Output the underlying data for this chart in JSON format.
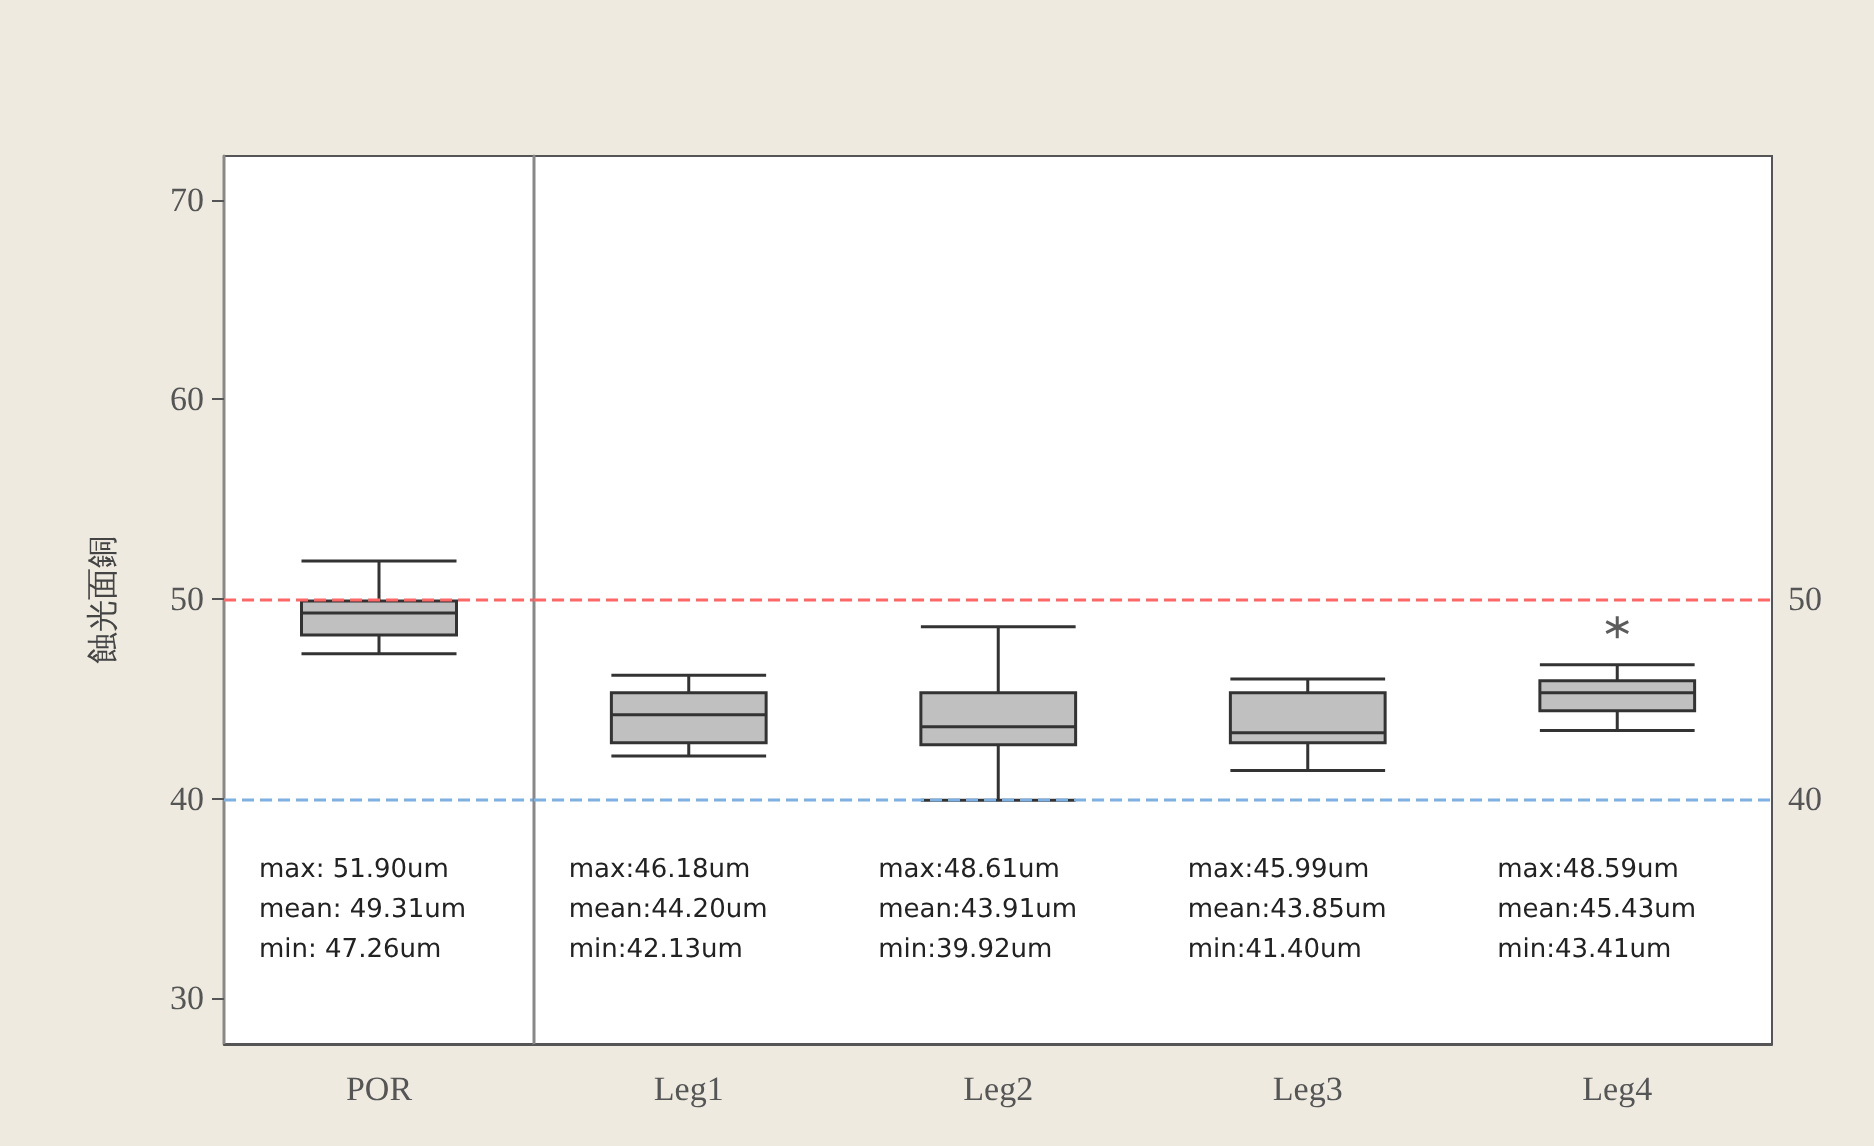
{
  "chart_data": [
    {
      "type": "box",
      "ylabel": "蝕光面銅",
      "categories": [
        "POR"
      ],
      "series": [
        {
          "color": "#c0c0c0",
          "boxes": [
            {
              "low": 47.26,
              "q1": 48.2,
              "median": 49.3,
              "q3": 49.9,
              "high": 51.9
            }
          ]
        }
      ],
      "ylim": [
        27.7,
        72.2
      ],
      "yticks": [
        30,
        40,
        50,
        60,
        70
      ],
      "grid": false,
      "ref_lines": [
        {
          "axis": "y",
          "value": 50,
          "color": "#ff6666",
          "line_style": "dashed"
        },
        {
          "axis": "y",
          "value": 40,
          "color": "#7eb0e2",
          "line_style": "dashed"
        }
      ],
      "annotations": [
        "max: 51.90um\nmean: 49.31um\nmin: 47.26um"
      ]
    },
    {
      "type": "box",
      "categories": [
        "Leg1",
        "Leg2",
        "Leg3",
        "Leg4"
      ],
      "series": [
        {
          "color": "#c0c0c0",
          "boxes": [
            {
              "low": 42.13,
              "q1": 42.8,
              "median": 44.2,
              "q3": 45.3,
              "high": 46.18
            },
            {
              "low": 39.92,
              "q1": 42.7,
              "median": 43.6,
              "q3": 45.3,
              "high": 48.61
            },
            {
              "low": 41.4,
              "q1": 42.8,
              "median": 43.3,
              "q3": 45.3,
              "high": 45.99
            },
            {
              "low": 43.41,
              "q1": 44.4,
              "median": 45.3,
              "q3": 45.9,
              "high": 46.7,
              "outliers": [
                48.59
              ]
            }
          ]
        }
      ],
      "ylim": [
        27.7,
        72.2
      ],
      "grid": false,
      "tick_labels": "x",
      "ref_lines": [
        {
          "axis": "y",
          "value": 50,
          "label": "50",
          "color": "#ff6666",
          "line_style": "dashed"
        },
        {
          "axis": "y",
          "value": 40,
          "label": "40",
          "color": "#7eb0e2",
          "line_style": "dashed"
        }
      ],
      "annotations": [
        "max:46.18um\nmean:44.20um\nmin:42.13um",
        "max:48.61um\nmean:43.91um\nmin:39.92um",
        "max:45.99um\nmean:43.85um\nmin:41.40um",
        "max:48.59um\nmean:45.43um\nmin:43.41um"
      ]
    }
  ]
}
